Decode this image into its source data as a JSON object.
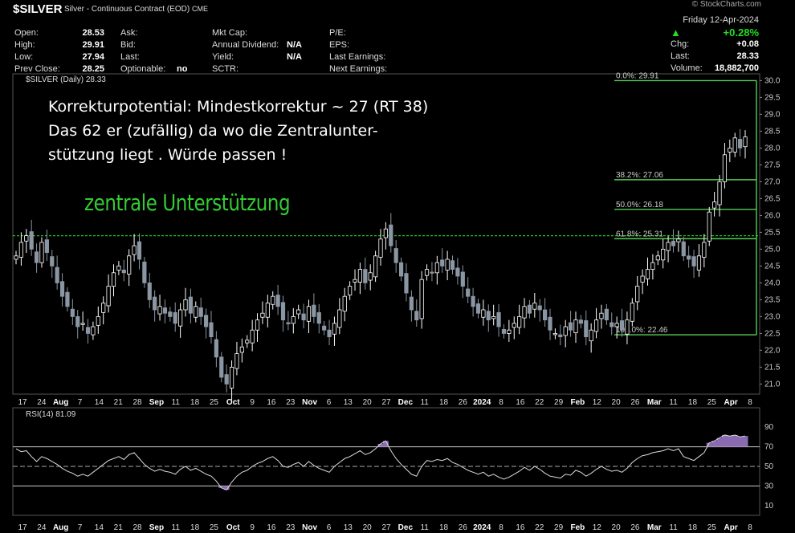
{
  "header": {
    "ticker": "$SILVER",
    "description": "Silver - Continuous Contract (EOD)",
    "exchange": "CME",
    "logo": "© StockCharts.com",
    "date": "Friday  12-Apr-2024",
    "change_pct": "+0.28%",
    "chg_label": "Chg:",
    "chg_value": "+0.08",
    "last_label": "Last:",
    "last_value": "28.33",
    "volume_label": "Volume:",
    "volume_value": "18,882,700",
    "col1": [
      [
        "Open:",
        "28.53"
      ],
      [
        "High:",
        "29.91"
      ],
      [
        "Low:",
        "27.94"
      ],
      [
        "Prev Close:",
        "28.25"
      ]
    ],
    "col2": [
      [
        "Ask:",
        ""
      ],
      [
        "Bid:",
        ""
      ],
      [
        "Last:",
        ""
      ],
      [
        "Optionable:",
        "no"
      ]
    ],
    "col3": [
      [
        "Mkt Cap:",
        ""
      ],
      [
        "Annual Dividend:",
        "N/A"
      ],
      [
        "Yield:",
        "N/A"
      ],
      [
        "SCTR:",
        ""
      ]
    ],
    "col4": [
      [
        "P/E:",
        ""
      ],
      [
        "EPS:",
        ""
      ],
      [
        "Last Earnings:",
        ""
      ],
      [
        "Next Earnings:",
        ""
      ]
    ]
  },
  "price_panel_label": "$SILVER (Daily) 28.33",
  "rsi_panel_label": "RSI(14) 81.09",
  "annotation_lines": [
    "Korrekturpotential: Mindestkorrektur ~ 27 (RT 38)",
    "Das 62 er (zufällig) da wo die Zentralunter-",
    "stützung liegt . Würde passen !"
  ],
  "support_label": "zentrale Unterstützung",
  "chart_data": {
    "type": "candlestick",
    "ylim": [
      20.7,
      30.2
    ],
    "y_ticks": [
      "21.0",
      "21.5",
      "22.0",
      "22.5",
      "23.0",
      "23.5",
      "24.0",
      "24.5",
      "25.0",
      "25.5",
      "26.0",
      "26.5",
      "27.0",
      "27.5",
      "28.0",
      "28.5",
      "29.0",
      "29.5",
      "30.0"
    ],
    "x_ticks": [
      {
        "label": "17",
        "bold": false
      },
      {
        "label": "24",
        "bold": false
      },
      {
        "label": "Aug",
        "bold": true
      },
      {
        "label": "7",
        "bold": false
      },
      {
        "label": "14",
        "bold": false
      },
      {
        "label": "21",
        "bold": false
      },
      {
        "label": "28",
        "bold": false
      },
      {
        "label": "Sep",
        "bold": true
      },
      {
        "label": "11",
        "bold": false
      },
      {
        "label": "18",
        "bold": false
      },
      {
        "label": "25",
        "bold": false
      },
      {
        "label": "Oct",
        "bold": true
      },
      {
        "label": "9",
        "bold": false
      },
      {
        "label": "16",
        "bold": false
      },
      {
        "label": "23",
        "bold": false
      },
      {
        "label": "Nov",
        "bold": true
      },
      {
        "label": "6",
        "bold": false
      },
      {
        "label": "13",
        "bold": false
      },
      {
        "label": "20",
        "bold": false
      },
      {
        "label": "27",
        "bold": false
      },
      {
        "label": "Dec",
        "bold": true
      },
      {
        "label": "11",
        "bold": false
      },
      {
        "label": "18",
        "bold": false
      },
      {
        "label": "26",
        "bold": false
      },
      {
        "label": "2024",
        "bold": true
      },
      {
        "label": "8",
        "bold": false
      },
      {
        "label": "16",
        "bold": false
      },
      {
        "label": "22",
        "bold": false
      },
      {
        "label": "29",
        "bold": false
      },
      {
        "label": "Feb",
        "bold": true
      },
      {
        "label": "12",
        "bold": false
      },
      {
        "label": "20",
        "bold": false
      },
      {
        "label": "26",
        "bold": false
      },
      {
        "label": "Mar",
        "bold": true
      },
      {
        "label": "11",
        "bold": false
      },
      {
        "label": "18",
        "bold": false
      },
      {
        "label": "25",
        "bold": false
      },
      {
        "label": "Apr",
        "bold": true
      },
      {
        "label": "8",
        "bold": false
      }
    ],
    "close": [
      24.8,
      25.2,
      25.4,
      25.0,
      24.6,
      25.2,
      24.9,
      24.5,
      24.0,
      23.6,
      23.3,
      23.0,
      22.7,
      22.8,
      22.5,
      22.7,
      23.0,
      23.4,
      23.9,
      24.3,
      24.5,
      24.3,
      24.8,
      25.1,
      24.7,
      24.0,
      23.5,
      23.2,
      23.3,
      23.1,
      23.0,
      22.8,
      23.2,
      23.5,
      23.1,
      23.3,
      23.0,
      22.7,
      22.4,
      21.8,
      21.2,
      21.0,
      21.5,
      21.9,
      22.1,
      22.3,
      22.6,
      22.9,
      23.1,
      23.4,
      23.6,
      23.3,
      22.9,
      22.8,
      23.0,
      23.2,
      22.9,
      23.3,
      23.0,
      22.8,
      22.6,
      22.4,
      22.8,
      23.2,
      23.6,
      23.9,
      24.1,
      24.4,
      24.0,
      24.3,
      24.8,
      25.3,
      25.6,
      25.1,
      24.6,
      24.2,
      23.7,
      23.2,
      22.9,
      24.1,
      24.4,
      24.3,
      24.6,
      24.5,
      24.7,
      24.4,
      24.2,
      23.9,
      23.6,
      23.3,
      23.1,
      23.2,
      22.9,
      23.0,
      22.7,
      22.5,
      22.6,
      22.8,
      23.0,
      23.3,
      23.1,
      23.4,
      23.2,
      22.9,
      22.6,
      22.5,
      22.4,
      22.7,
      22.6,
      22.9,
      22.8,
      22.4,
      22.6,
      22.9,
      23.1,
      22.9,
      22.7,
      22.8,
      22.6,
      22.9,
      23.4,
      23.9,
      24.2,
      24.4,
      24.6,
      24.8,
      25.0,
      25.2,
      25.1,
      25.3,
      24.8,
      24.7,
      24.5,
      24.8,
      25.2,
      26.1,
      26.4,
      27.0,
      27.8,
      28.0,
      28.3,
      28.0,
      28.33
    ],
    "rsi_ticks": [
      "90",
      "70",
      "50",
      "30",
      "10"
    ],
    "rsi_levels": {
      "overbought": 70,
      "oversold": 30
    },
    "rsi": [
      68,
      65,
      66,
      60,
      55,
      60,
      58,
      55,
      52,
      48,
      45,
      43,
      40,
      42,
      40,
      44,
      48,
      52,
      56,
      58,
      60,
      57,
      62,
      64,
      58,
      52,
      48,
      45,
      47,
      45,
      44,
      42,
      47,
      50,
      46,
      48,
      45,
      42,
      40,
      35,
      28,
      26,
      34,
      40,
      44,
      46,
      50,
      53,
      55,
      58,
      60,
      56,
      50,
      49,
      52,
      54,
      50,
      55,
      51,
      48,
      46,
      44,
      50,
      54,
      58,
      60,
      63,
      66,
      62,
      64,
      68,
      73,
      76,
      66,
      58,
      52,
      47,
      42,
      40,
      50,
      56,
      55,
      57,
      56,
      58,
      54,
      52,
      49,
      46,
      44,
      42,
      44,
      40,
      42,
      39,
      37,
      39,
      42,
      45,
      49,
      46,
      50,
      47,
      43,
      40,
      39,
      38,
      42,
      41,
      46,
      44,
      40,
      43,
      47,
      50,
      47,
      45,
      46,
      44,
      48,
      54,
      58,
      61,
      62,
      64,
      65,
      66,
      68,
      66,
      68,
      60,
      58,
      56,
      60,
      64,
      74,
      76,
      79,
      82,
      81,
      82,
      80,
      81.09
    ]
  }
}
